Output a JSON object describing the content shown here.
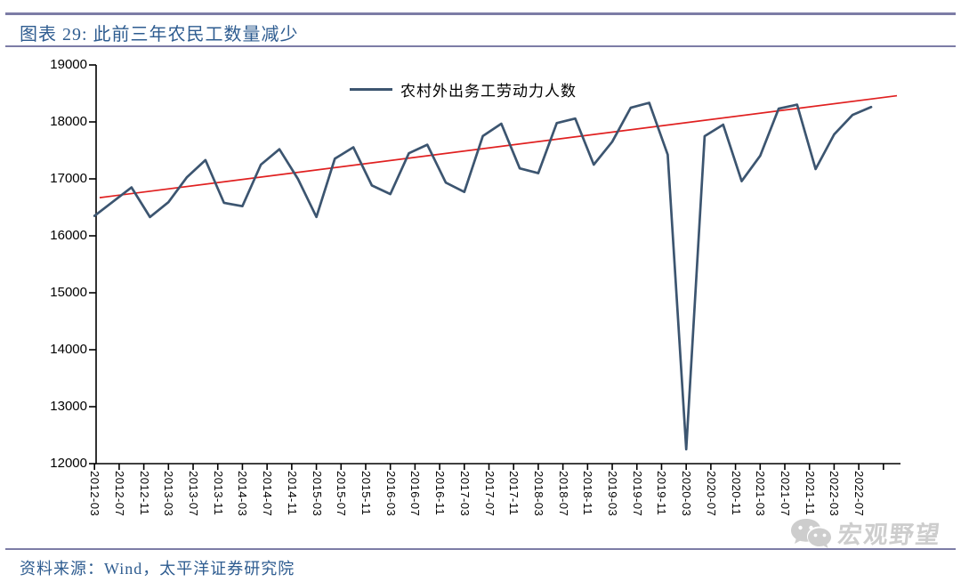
{
  "colors": {
    "accent_blue": "#2e5c90",
    "rule_purple": "#7c7ca6",
    "series_navy": "#3c5570",
    "trend_red": "#e02020",
    "axis_black": "#000000",
    "watermark_gray": "#c9c9c9"
  },
  "header": {
    "title": "图表 29: 此前三年农民工数量减少"
  },
  "chart_data": {
    "type": "line",
    "title": "图表 29: 此前三年农民工数量减少",
    "legend_position": "top-center",
    "grid": false,
    "ylim": [
      12000,
      19000
    ],
    "y_ticks": [
      19000,
      18000,
      17000,
      16000,
      15000,
      14000,
      13000,
      12000
    ],
    "x_tick_labels": [
      "2012-03",
      "2012-07",
      "2012-11",
      "2013-03",
      "2013-07",
      "2013-11",
      "2014-03",
      "2014-07",
      "2014-11",
      "2015-03",
      "2015-07",
      "2015-11",
      "2016-03",
      "2016-07",
      "2016-11",
      "2017-03",
      "2017-07",
      "2017-11",
      "2018-03",
      "2018-07",
      "2018-11",
      "2019-03",
      "2019-07",
      "2019-11",
      "2020-03",
      "2020-07",
      "2020-11",
      "2021-03",
      "2021-07",
      "2021-11",
      "2022-03",
      "2022-07"
    ],
    "x": [
      "2012-03",
      "2012-06",
      "2012-09",
      "2012-12",
      "2013-03",
      "2013-06",
      "2013-09",
      "2013-12",
      "2014-03",
      "2014-06",
      "2014-09",
      "2014-12",
      "2015-03",
      "2015-06",
      "2015-09",
      "2015-12",
      "2016-03",
      "2016-06",
      "2016-09",
      "2016-12",
      "2017-03",
      "2017-06",
      "2017-09",
      "2017-12",
      "2018-03",
      "2018-06",
      "2018-09",
      "2018-12",
      "2019-03",
      "2019-06",
      "2019-09",
      "2019-12",
      "2020-03",
      "2020-06",
      "2020-09",
      "2020-12",
      "2021-03",
      "2021-06",
      "2021-09",
      "2021-12",
      "2022-03",
      "2022-06",
      "2022-09"
    ],
    "series": [
      {
        "name": "农村外出务工劳动力人数",
        "color": "#3c5570",
        "values": [
          16350,
          16600,
          16850,
          16330,
          16590,
          17030,
          17330,
          16580,
          16520,
          17250,
          17520,
          17000,
          16331,
          17355,
          17554,
          16884,
          16733,
          17450,
          17600,
          16934,
          16770,
          17751,
          17969,
          17185,
          17100,
          17980,
          18060,
          17250,
          17651,
          18248,
          18336,
          17425,
          12251,
          17750,
          17952,
          16959,
          17405,
          18233,
          18303,
          17172,
          17780,
          18124,
          18261
        ]
      }
    ],
    "trendline": {
      "color": "#e02020",
      "start_value": 16670,
      "end_value": 18460
    }
  },
  "legend": {
    "label": "农村外出务工劳动力人数"
  },
  "footer": {
    "source": "资料来源：Wind，太平洋证券研究院"
  },
  "watermark": {
    "text": "宏观野望",
    "logo": "wechat-icon"
  }
}
